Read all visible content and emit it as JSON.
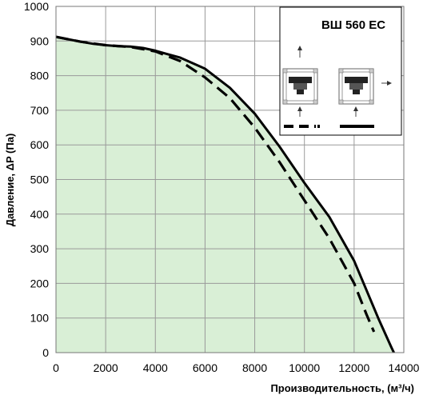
{
  "chart_data": {
    "type": "area",
    "title": "ВШ 560 ЕС",
    "xlabel": "Производительность, (м³/ч)",
    "ylabel": "Давление, ΔP (Па)",
    "xlim": [
      0,
      14000
    ],
    "ylim": [
      0,
      1000
    ],
    "x_ticks": [
      "0",
      "2000",
      "4000",
      "6000",
      "8000",
      "10000",
      "12000",
      "14000"
    ],
    "y_ticks": [
      "0",
      "100",
      "200",
      "300",
      "400",
      "500",
      "600",
      "700",
      "800",
      "900",
      "1000"
    ],
    "grid": true,
    "fill_color": "#d9efd6",
    "series": [
      {
        "style": "solid",
        "color": "#000000",
        "x": [
          0,
          500,
          1000,
          1500,
          2000,
          2500,
          3000,
          3500,
          4000,
          4500,
          5000,
          6000,
          7000,
          8000,
          9000,
          10000,
          11000,
          12000,
          12500,
          13000,
          13500,
          13600
        ],
        "y": [
          912,
          905,
          898,
          892,
          888,
          885,
          884,
          880,
          872,
          862,
          852,
          820,
          765,
          690,
          595,
          490,
          392,
          265,
          180,
          95,
          15,
          0
        ]
      },
      {
        "style": "dashed",
        "color": "#000000",
        "x": [
          0,
          1000,
          2000,
          3000,
          4000,
          5000,
          6000,
          7000,
          8000,
          9000,
          10000,
          11000,
          12000,
          12500,
          12800
        ],
        "y": [
          912,
          898,
          888,
          883,
          870,
          842,
          795,
          735,
          650,
          550,
          440,
          330,
          200,
          110,
          60
        ]
      }
    ]
  },
  "legend_icons": [
    "fan-dashed-config-icon",
    "fan-solid-config-icon"
  ]
}
